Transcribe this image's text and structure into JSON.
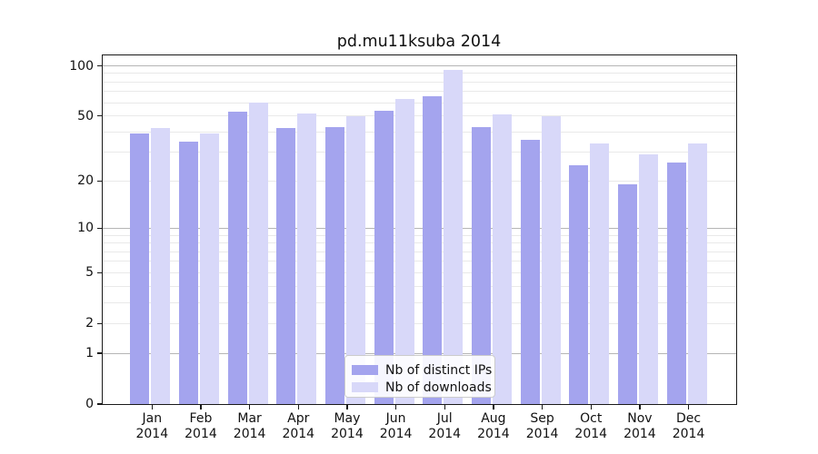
{
  "title": "pd.mu11ksuba 2014",
  "chart_data": {
    "type": "bar",
    "title": "pd.mu11ksuba 2014",
    "categories": [
      "Jan",
      "Feb",
      "Mar",
      "Apr",
      "May",
      "Jun",
      "Jul",
      "Aug",
      "Sep",
      "Oct",
      "Nov",
      "Dec"
    ],
    "year_label": "2014",
    "series": [
      {
        "name": "Nb of distinct IPs",
        "color": "#a4a4ee",
        "values": [
          39,
          35,
          53,
          42,
          43,
          54,
          66,
          43,
          36,
          25,
          19,
          26
        ]
      },
      {
        "name": "Nb of downloads",
        "color": "#d8d8f9",
        "values": [
          42,
          39,
          60,
          52,
          50,
          63,
          94,
          51,
          50,
          34,
          29,
          34
        ]
      }
    ],
    "yscale": "log1p",
    "ylim": [
      0,
      100
    ],
    "yticks": [
      0,
      1,
      2,
      5,
      10,
      20,
      50,
      100
    ],
    "grid": {
      "major_lines": [
        1,
        10,
        100
      ],
      "minor_lines": [
        2,
        3,
        4,
        5,
        6,
        7,
        8,
        9,
        20,
        30,
        40,
        50,
        60,
        70,
        80,
        90
      ]
    },
    "legend_position": "lower-center-inside",
    "xlabel": "",
    "ylabel": ""
  },
  "colors": {
    "background": "#ffffff",
    "bar_distinct_ips": "#a4a4ee",
    "bar_downloads": "#d8d8f9",
    "grid_major": "#b5b5b5",
    "grid_minor": "#e9e9e9",
    "axis": "#1a1a1a",
    "legend_border": "#cccccc",
    "text": "#111111"
  }
}
